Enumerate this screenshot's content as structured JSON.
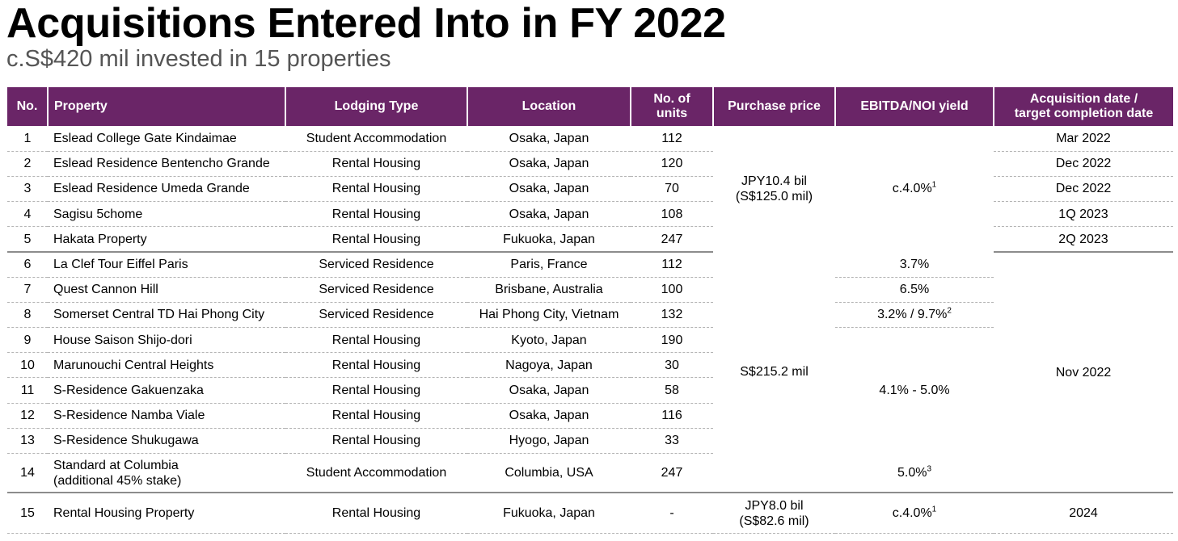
{
  "header": {
    "title": "Acquisitions Entered Into in FY 2022",
    "subtitle": "c.S$420 mil invested in 15 properties"
  },
  "table": {
    "columns": {
      "no": "No.",
      "property": "Property",
      "lodging_type": "Lodging Type",
      "location": "Location",
      "units_line1": "No. of",
      "units_line2": "units",
      "purchase_price": "Purchase price",
      "yield": "EBITDA/NOI yield",
      "date_line1": "Acquisition date /",
      "date_line2": "target completion date"
    },
    "rows": [
      {
        "no": "1",
        "property": "Eslead College Gate Kindaimae",
        "type": "Student Accommodation",
        "location": "Osaka, Japan",
        "units": "112",
        "date": "Mar 2022"
      },
      {
        "no": "2",
        "property": "Eslead Residence Bentencho Grande",
        "type": "Rental Housing",
        "location": "Osaka, Japan",
        "units": "120",
        "date": "Dec 2022"
      },
      {
        "no": "3",
        "property": "Eslead Residence Umeda Grande",
        "type": "Rental Housing",
        "location": "Osaka, Japan",
        "units": "70",
        "date": "Dec 2022"
      },
      {
        "no": "4",
        "property": "Sagisu 5chome",
        "type": "Rental Housing",
        "location": "Osaka, Japan",
        "units": "108",
        "date": "1Q 2023"
      },
      {
        "no": "5",
        "property": "Hakata Property",
        "type": "Rental Housing",
        "location": "Fukuoka, Japan",
        "units": "247",
        "date": "2Q 2023"
      },
      {
        "no": "6",
        "property": "La Clef Tour Eiffel Paris",
        "type": "Serviced Residence",
        "location": "Paris, France",
        "units": "112",
        "yield": "3.7%"
      },
      {
        "no": "7",
        "property": "Quest Cannon Hill",
        "type": "Serviced Residence",
        "location": "Brisbane, Australia",
        "units": "100",
        "yield": "6.5%"
      },
      {
        "no": "8",
        "property": "Somerset Central TD Hai Phong City",
        "type": "Serviced Residence",
        "location": "Hai Phong City, Vietnam",
        "units": "132",
        "yield": "3.2% / 9.7%",
        "yield_note": "2"
      },
      {
        "no": "9",
        "property": "House Saison Shijo-dori",
        "type": "Rental Housing",
        "location": "Kyoto, Japan",
        "units": "190"
      },
      {
        "no": "10",
        "property": "Marunouchi Central Heights",
        "type": "Rental Housing",
        "location": "Nagoya, Japan",
        "units": "30"
      },
      {
        "no": "11",
        "property": "S-Residence Gakuenzaka",
        "type": "Rental Housing",
        "location": "Osaka, Japan",
        "units": "58"
      },
      {
        "no": "12",
        "property": "S-Residence Namba Viale",
        "type": "Rental Housing",
        "location": "Osaka, Japan",
        "units": "116"
      },
      {
        "no": "13",
        "property": "S-Residence Shukugawa",
        "type": "Rental Housing",
        "location": "Hyogo, Japan",
        "units": "33"
      },
      {
        "no": "14",
        "property": "Standard at Columbia",
        "property_line2": "(additional 45% stake)",
        "type": "Student Accommodation",
        "location": "Columbia, USA",
        "units": "247",
        "yield": "5.0%",
        "yield_note": "3"
      },
      {
        "no": "15",
        "property": "Rental Housing Property",
        "type": "Rental Housing",
        "location": "Fukuoka, Japan",
        "units": "-",
        "price_line1": "JPY8.0 bil",
        "price_line2": "(S$82.6 mil)",
        "yield": "c.4.0%",
        "yield_note": "1",
        "date": "2024"
      }
    ],
    "group1": {
      "price_line1": "JPY10.4 bil",
      "price_line2": "(S$125.0 mil)",
      "yield": "c.4.0%",
      "yield_note": "1"
    },
    "group2": {
      "price": "S$215.2 mil",
      "yield_9_13": "4.1% - 5.0%",
      "date": "Nov 2022"
    }
  },
  "colors": {
    "header_bg": "#6a2567",
    "header_text": "#ffffff",
    "subtitle": "#555555"
  }
}
